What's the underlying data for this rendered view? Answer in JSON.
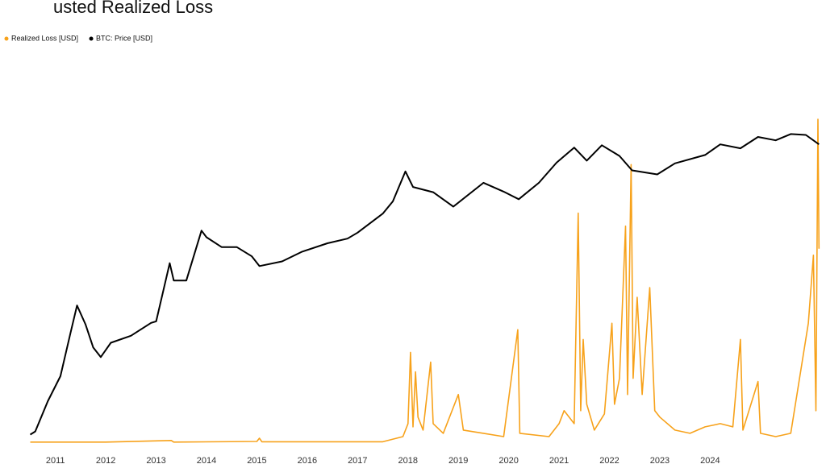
{
  "chart_data": {
    "type": "line",
    "title": "usted Realized Loss",
    "xlim": [
      2009.9,
      2026.3
    ],
    "xticks": [
      2011,
      2012,
      2013,
      2014,
      2015,
      2016,
      2017,
      2018,
      2019,
      2020,
      2021,
      2022,
      2023,
      2024
    ],
    "ylim": [
      0.04,
      320000
    ],
    "y_log": true,
    "y2lim": [
      0,
      100
    ],
    "grid": false,
    "series": [
      {
        "name": "Realized Loss [USD]",
        "color": "#f7a21b",
        "axis": "y2",
        "x": [
          2010.5,
          2012.0,
          2013.3,
          2013.35,
          2015.0,
          2015.05,
          2015.1,
          2017.5,
          2017.9,
          2018.0,
          2018.05,
          2018.1,
          2018.15,
          2018.2,
          2018.3,
          2018.45,
          2018.5,
          2018.7,
          2019.0,
          2019.1,
          2019.5,
          2019.9,
          2020.18,
          2020.22,
          2020.8,
          2021.0,
          2021.1,
          2021.3,
          2021.38,
          2021.43,
          2021.48,
          2021.55,
          2021.7,
          2021.9,
          2022.05,
          2022.1,
          2022.2,
          2022.32,
          2022.36,
          2022.43,
          2022.47,
          2022.55,
          2022.65,
          2022.8,
          2022.9,
          2023.0,
          2023.3,
          2023.6,
          2023.9,
          2024.2,
          2024.45,
          2024.6,
          2024.65,
          2024.95,
          2025.0,
          2025.3,
          2025.6,
          2025.95,
          2026.05,
          2026.1,
          2026.14,
          2026.16
        ],
        "values": [
          0.3,
          0.3,
          0.8,
          0.3,
          0.5,
          1.5,
          0.4,
          0.4,
          2,
          6,
          28,
          5,
          22,
          8,
          4,
          25,
          6,
          3,
          15,
          4,
          3,
          2,
          35,
          3,
          2,
          6,
          10,
          6,
          71,
          10,
          32,
          12,
          4,
          9,
          37,
          12,
          20,
          67,
          15,
          86,
          20,
          45,
          15,
          48,
          10,
          8,
          4,
          3,
          5,
          6,
          5,
          32,
          4,
          19,
          3,
          2,
          3,
          37,
          58,
          10,
          100,
          60
        ]
      },
      {
        "name": "BTC: Price [USD]",
        "color": "#000000",
        "axis": "y",
        "x": [
          2010.5,
          2010.6,
          2010.85,
          2011.1,
          2011.3,
          2011.43,
          2011.6,
          2011.75,
          2011.9,
          2012.1,
          2012.5,
          2012.9,
          2013.0,
          2013.27,
          2013.35,
          2013.6,
          2013.9,
          2014.0,
          2014.3,
          2014.6,
          2014.9,
          2015.05,
          2015.5,
          2015.9,
          2016.4,
          2016.8,
          2017.0,
          2017.5,
          2017.7,
          2017.95,
          2018.1,
          2018.5,
          2018.9,
          2019.5,
          2019.9,
          2020.2,
          2020.6,
          2020.95,
          2021.3,
          2021.55,
          2021.85,
          2022.2,
          2022.45,
          2022.95,
          2023.3,
          2023.9,
          2024.2,
          2024.6,
          2024.95,
          2025.3,
          2025.6,
          2025.9,
          2026.16
        ],
        "values": [
          0.06,
          0.07,
          0.3,
          1,
          8,
          30,
          12,
          4,
          2.5,
          5,
          7,
          13,
          14,
          230,
          100,
          100,
          1100,
          800,
          500,
          500,
          320,
          200,
          250,
          400,
          600,
          750,
          1000,
          2500,
          4500,
          19000,
          9000,
          7000,
          3500,
          11000,
          7200,
          5000,
          11000,
          29000,
          60000,
          32000,
          67000,
          40000,
          20000,
          16500,
          28000,
          42000,
          70000,
          58000,
          100000,
          85000,
          115000,
          110000,
          70000
        ]
      }
    ]
  }
}
